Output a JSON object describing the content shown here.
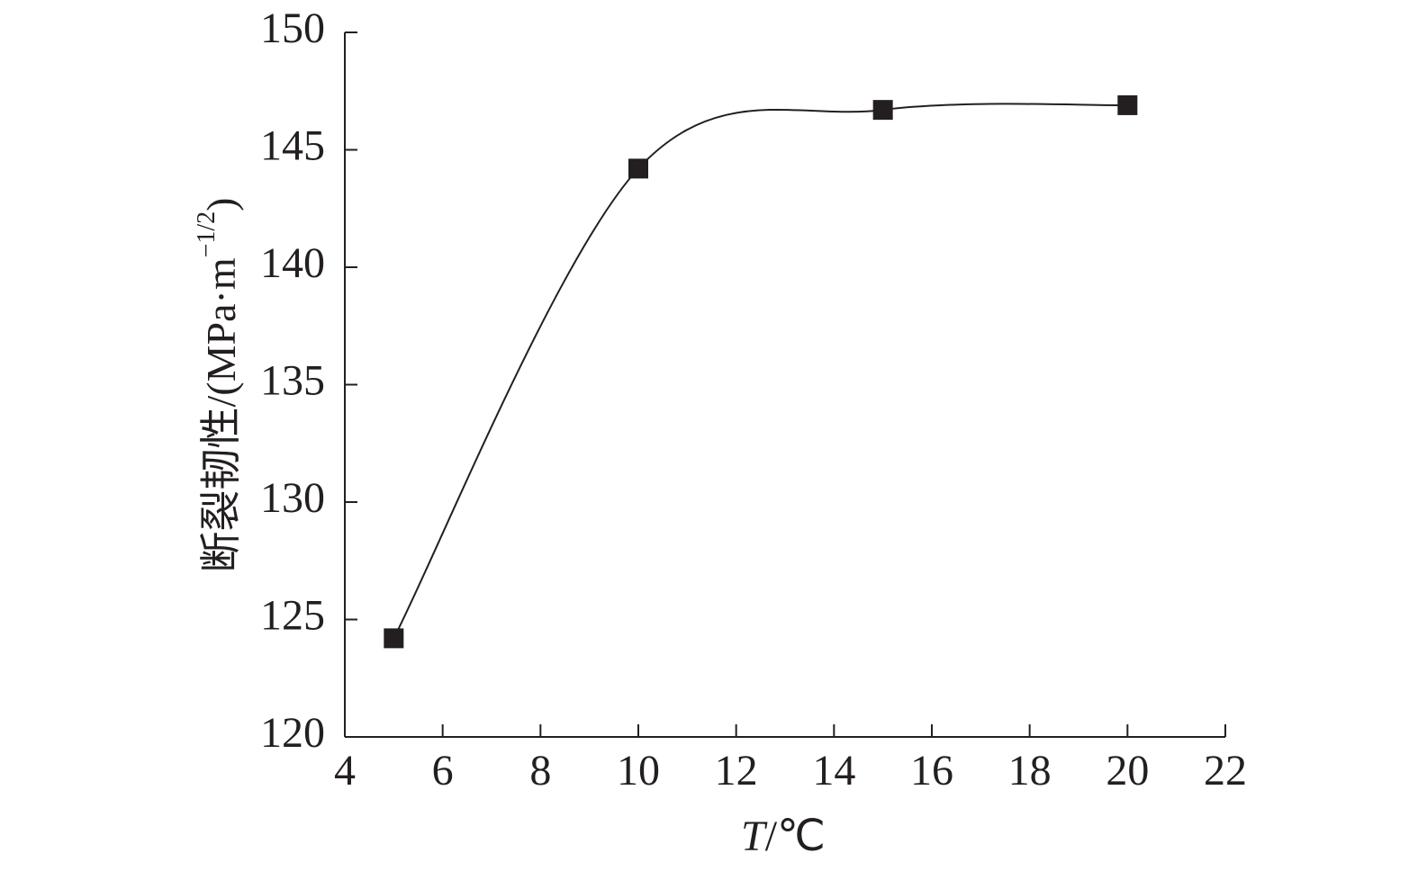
{
  "chart_data": {
    "type": "line",
    "xlabel": [
      "T",
      "/℃"
    ],
    "ylabel": [
      "断裂韧性/(MPa·m",
      "−1/2",
      ")"
    ],
    "x": [
      5,
      10,
      15,
      20
    ],
    "series": [
      {
        "name": null,
        "color": "#231f20",
        "values": [
          124.2,
          144.2,
          146.7,
          146.9
        ]
      }
    ],
    "xlim": [
      4,
      22
    ],
    "xticks": [
      4,
      6,
      8,
      10,
      12,
      14,
      16,
      18,
      20,
      22
    ],
    "ylim": [
      120,
      150
    ],
    "yticks": [
      120,
      125,
      130,
      135,
      140,
      145,
      150
    ],
    "grid": false,
    "smooth": true,
    "marker": "square"
  }
}
